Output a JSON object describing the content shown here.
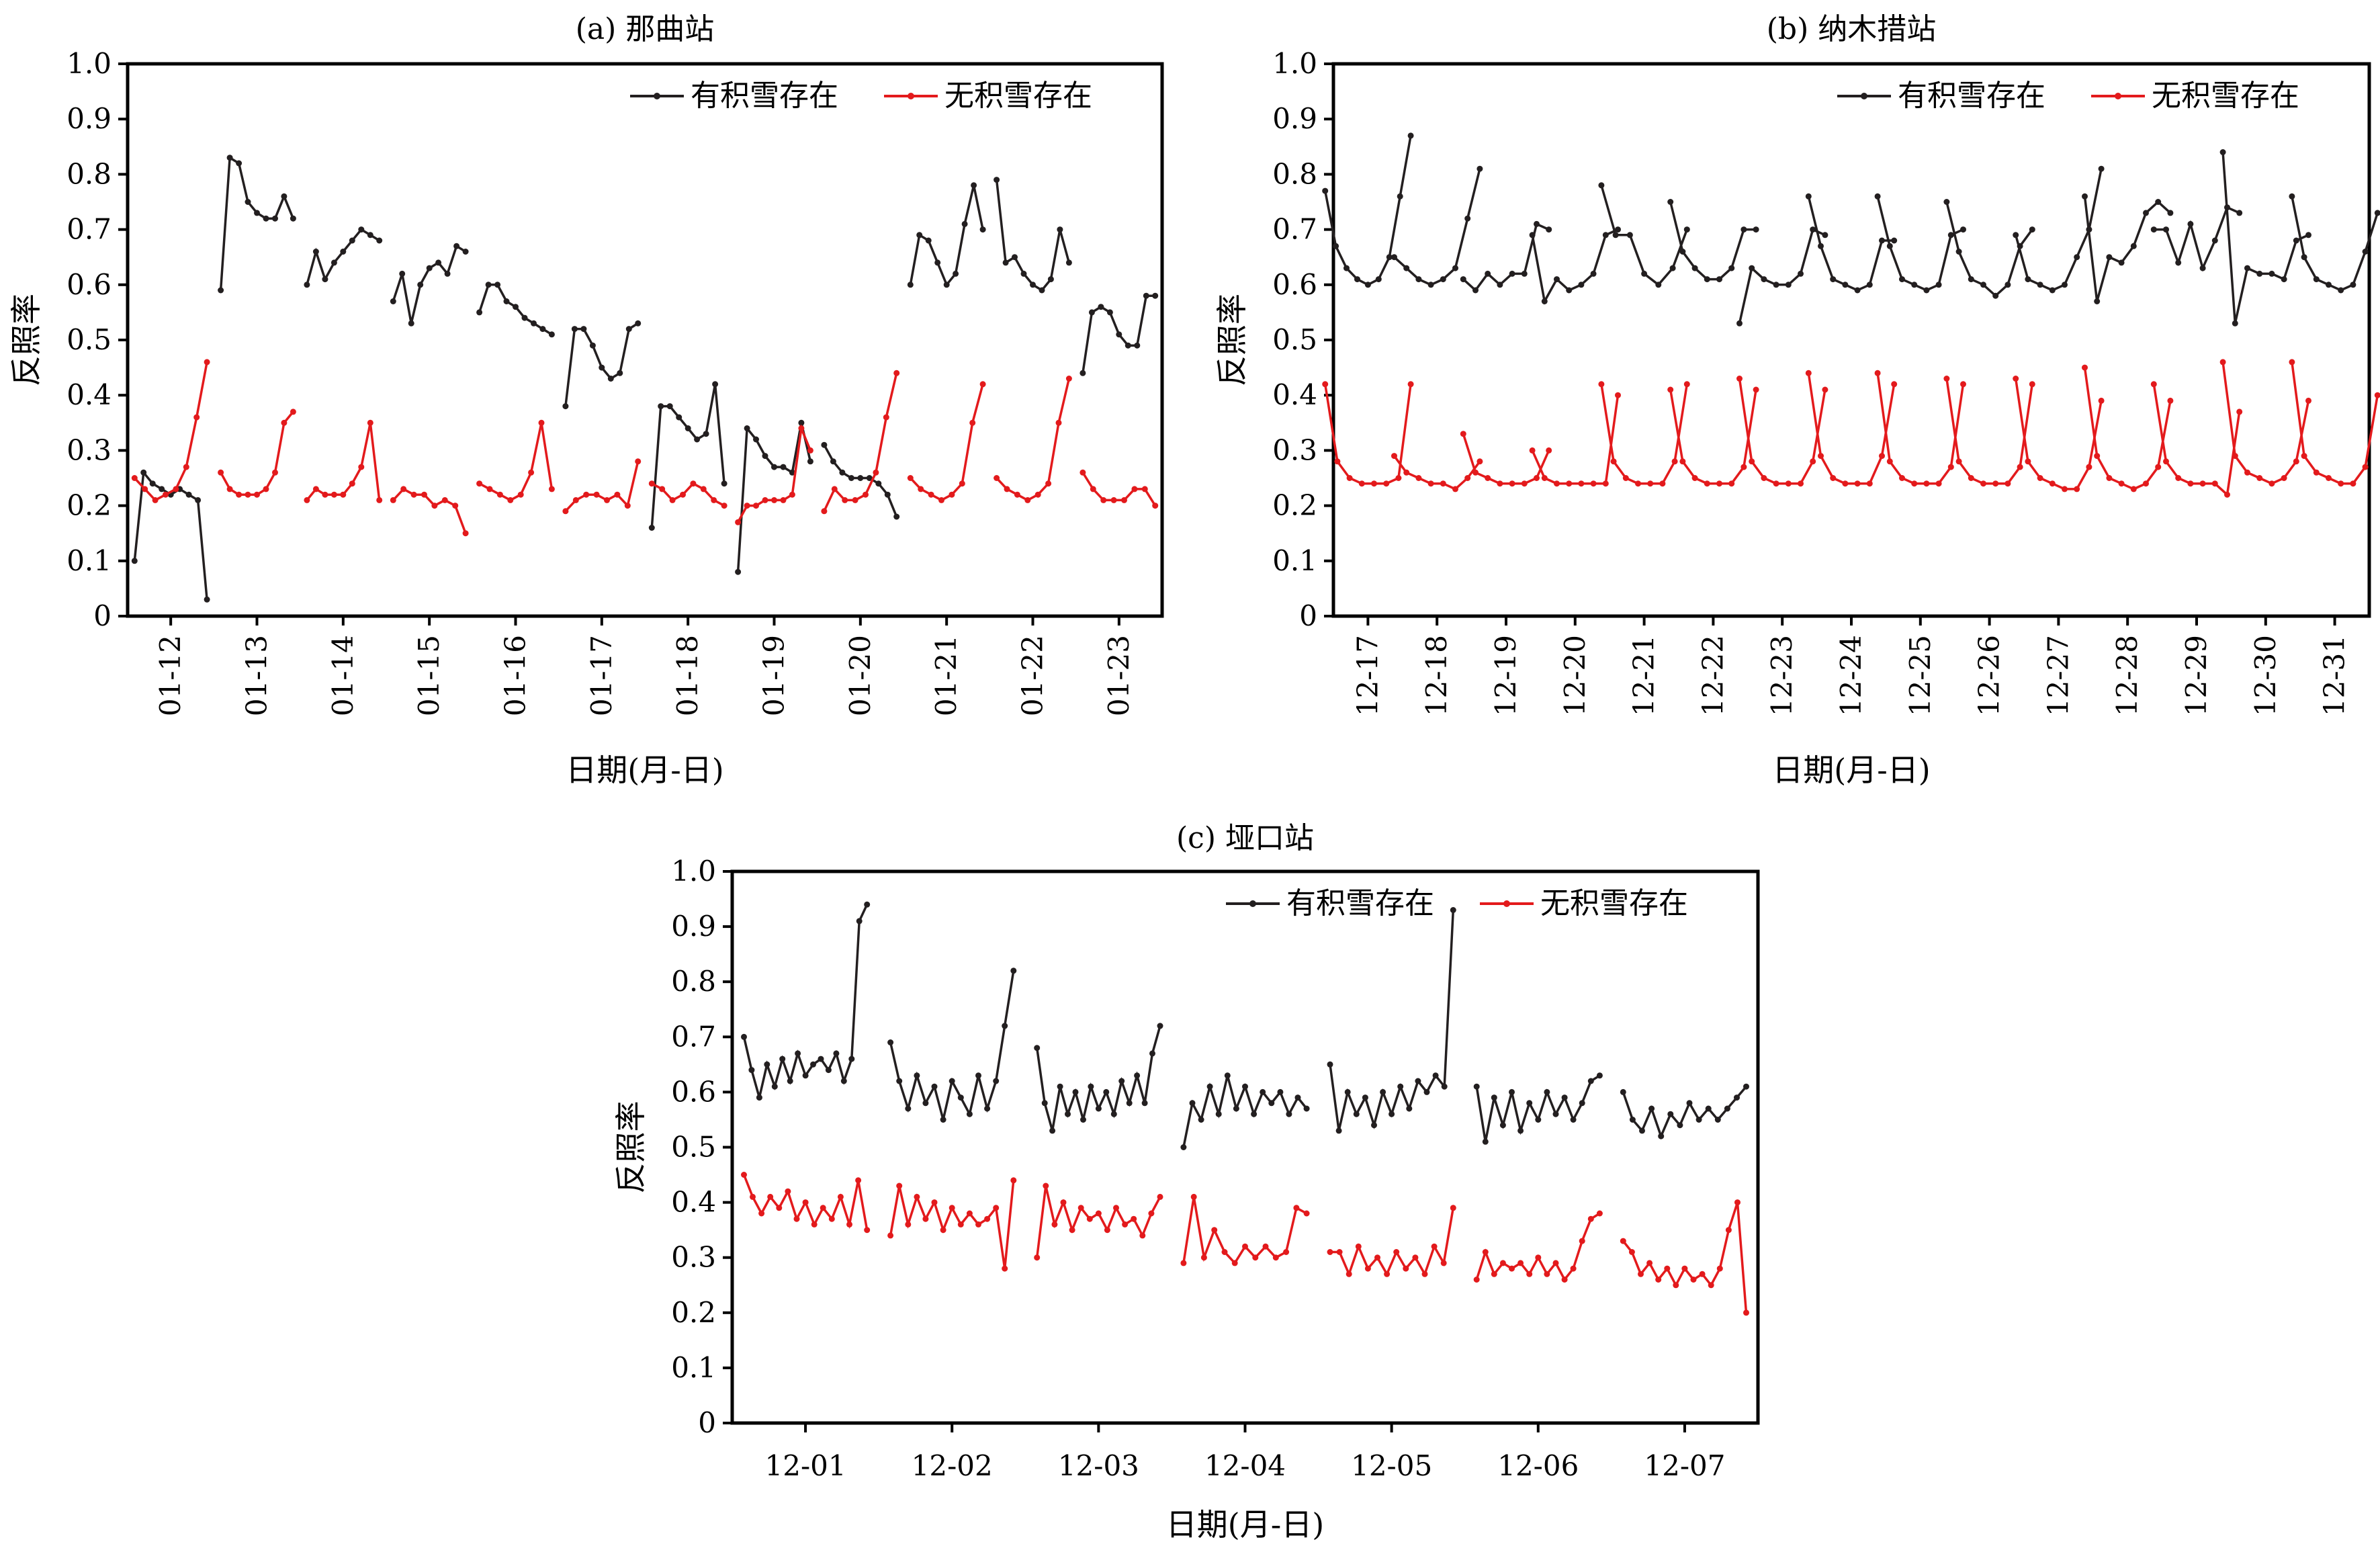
{
  "chart_data": [
    {
      "type": "line",
      "title": "(a) 那曲站",
      "xlabel": "日期(月-日)",
      "ylabel": "反照率",
      "ylim": [
        0,
        1.0
      ],
      "yticks": [
        "0",
        "0.1",
        "0.2",
        "0.3",
        "0.4",
        "0.5",
        "0.6",
        "0.7",
        "0.8",
        "0.9",
        "1.0"
      ],
      "categories": [
        "01-12",
        "01-13",
        "01-14",
        "01-15",
        "01-16",
        "01-17",
        "01-18",
        "01-19",
        "01-20",
        "01-21",
        "01-22",
        "01-23"
      ],
      "legend_position": "top-right",
      "series": [
        {
          "name": "有积雪存在",
          "color": "#231f20",
          "days": [
            [
              0.1,
              0.26,
              0.24,
              0.23,
              0.22,
              0.23,
              0.22,
              0.21,
              0.03
            ],
            [
              0.59,
              0.83,
              0.82,
              0.75,
              0.73,
              0.72,
              0.72,
              0.76,
              0.72
            ],
            [
              0.6,
              0.66,
              0.61,
              0.64,
              0.66,
              0.68,
              0.7,
              0.69,
              0.68
            ],
            [
              0.57,
              0.62,
              0.53,
              0.6,
              0.63,
              0.64,
              0.62,
              0.67,
              0.66
            ],
            [
              0.55,
              0.6,
              0.6,
              0.57,
              0.56,
              0.54,
              0.53,
              0.52,
              0.51
            ],
            [
              0.38,
              0.52,
              0.52,
              0.49,
              0.45,
              0.43,
              0.44,
              0.52,
              0.53
            ],
            [
              0.16,
              0.38,
              0.38,
              0.36,
              0.34,
              0.32,
              0.33,
              0.42,
              0.24
            ],
            [
              0.08,
              0.34,
              0.32,
              0.29,
              0.27,
              0.27,
              0.26,
              0.35,
              0.28
            ],
            [
              0.31,
              0.28,
              0.26,
              0.25,
              0.25,
              0.25,
              0.24,
              0.22,
              0.18
            ],
            [
              0.6,
              0.69,
              0.68,
              0.64,
              0.6,
              0.62,
              0.71,
              0.78,
              0.7
            ],
            [
              0.79,
              0.64,
              0.65,
              0.62,
              0.6,
              0.59,
              0.61,
              0.7,
              0.64
            ],
            [
              0.44,
              0.55,
              0.56,
              0.55,
              0.51,
              0.49,
              0.49,
              0.58,
              0.58
            ]
          ]
        },
        {
          "name": "无积雪存在",
          "color": "#e31a1c",
          "days": [
            [
              0.25,
              0.23,
              0.21,
              0.22,
              0.23,
              0.27,
              0.36,
              0.46
            ],
            [
              0.26,
              0.23,
              0.22,
              0.22,
              0.22,
              0.23,
              0.26,
              0.35,
              0.37
            ],
            [
              0.21,
              0.23,
              0.22,
              0.22,
              0.22,
              0.24,
              0.27,
              0.35,
              0.21
            ],
            [
              0.21,
              0.23,
              0.22,
              0.22,
              0.2,
              0.21,
              0.2,
              0.15
            ],
            [
              0.24,
              0.23,
              0.22,
              0.21,
              0.22,
              0.26,
              0.35,
              0.23
            ],
            [
              0.19,
              0.21,
              0.22,
              0.22,
              0.21,
              0.22,
              0.2,
              0.28
            ],
            [
              0.24,
              0.23,
              0.21,
              0.22,
              0.24,
              0.23,
              0.21,
              0.2
            ],
            [
              0.17,
              0.2,
              0.2,
              0.21,
              0.21,
              0.21,
              0.22,
              0.34,
              0.3
            ],
            [
              0.19,
              0.23,
              0.21,
              0.21,
              0.22,
              0.26,
              0.36,
              0.44
            ],
            [
              0.25,
              0.23,
              0.22,
              0.21,
              0.22,
              0.24,
              0.35,
              0.42
            ],
            [
              0.25,
              0.23,
              0.22,
              0.21,
              0.22,
              0.24,
              0.35,
              0.43
            ],
            [
              0.26,
              0.23,
              0.21,
              0.21,
              0.21,
              0.23,
              0.23,
              0.2
            ]
          ]
        }
      ]
    },
    {
      "type": "line",
      "title": "(b) 纳木措站",
      "xlabel": "日期(月-日)",
      "ylabel": "反照率",
      "ylim": [
        0,
        1.0
      ],
      "yticks": [
        "0",
        "0.1",
        "0.2",
        "0.3",
        "0.4",
        "0.5",
        "0.6",
        "0.7",
        "0.8",
        "0.9",
        "1.0"
      ],
      "categories": [
        "12-17",
        "12-18",
        "12-19",
        "12-20",
        "12-21",
        "12-22",
        "12-23",
        "12-24",
        "12-25",
        "12-26",
        "12-27",
        "12-28",
        "12-29",
        "12-30",
        "12-31"
      ],
      "legend_position": "top-right",
      "series": [
        {
          "name": "有积雪存在",
          "color": "#231f20",
          "days": [
            [
              0.77,
              0.67,
              0.63,
              0.61,
              0.6,
              0.61,
              0.65,
              0.76,
              0.87
            ],
            [
              0.65,
              0.63,
              0.61,
              0.6,
              0.61,
              0.63,
              0.72,
              0.81
            ],
            [
              0.61,
              0.59,
              0.62,
              0.6,
              0.62,
              0.62,
              0.71,
              0.7
            ],
            [
              0.69,
              0.57,
              0.61,
              0.59,
              0.6,
              0.62,
              0.69,
              0.7
            ],
            [
              0.78,
              0.69,
              0.69,
              0.62,
              0.6,
              0.63,
              0.7
            ],
            [
              0.75,
              0.66,
              0.63,
              0.61,
              0.61,
              0.63,
              0.7,
              0.7
            ],
            [
              0.53,
              0.63,
              0.61,
              0.6,
              0.6,
              0.62,
              0.7,
              0.69
            ],
            [
              0.76,
              0.67,
              0.61,
              0.6,
              0.59,
              0.6,
              0.68,
              0.68
            ],
            [
              0.76,
              0.67,
              0.61,
              0.6,
              0.59,
              0.6,
              0.69,
              0.7
            ],
            [
              0.75,
              0.66,
              0.61,
              0.6,
              0.58,
              0.6,
              0.67,
              0.7
            ],
            [
              0.69,
              0.61,
              0.6,
              0.59,
              0.6,
              0.65,
              0.7,
              0.81
            ],
            [
              0.76,
              0.57,
              0.65,
              0.64,
              0.67,
              0.73,
              0.75,
              0.73
            ],
            [
              0.7,
              0.7,
              0.64,
              0.71,
              0.63,
              0.68,
              0.74,
              0.73
            ],
            [
              0.84,
              0.53,
              0.63,
              0.62,
              0.62,
              0.61,
              0.68,
              0.69
            ],
            [
              0.76,
              0.65,
              0.61,
              0.6,
              0.59,
              0.6,
              0.66,
              0.73
            ]
          ]
        },
        {
          "name": "无积雪存在",
          "color": "#e31a1c",
          "days": [
            [
              0.42,
              0.28,
              0.25,
              0.24,
              0.24,
              0.24,
              0.25,
              0.42
            ],
            [
              0.29,
              0.26,
              0.25,
              0.24,
              0.24,
              0.23,
              0.25,
              0.28
            ],
            [
              0.33,
              0.26,
              0.25,
              0.24,
              0.24,
              0.24,
              0.25,
              0.3
            ],
            [
              0.3,
              0.25,
              0.24,
              0.24,
              0.24,
              0.24,
              0.24,
              0.4
            ],
            [
              0.42,
              0.28,
              0.25,
              0.24,
              0.24,
              0.24,
              0.28,
              0.42
            ],
            [
              0.41,
              0.28,
              0.25,
              0.24,
              0.24,
              0.24,
              0.27,
              0.41
            ],
            [
              0.43,
              0.28,
              0.25,
              0.24,
              0.24,
              0.24,
              0.28,
              0.41
            ],
            [
              0.44,
              0.29,
              0.25,
              0.24,
              0.24,
              0.24,
              0.29,
              0.42
            ],
            [
              0.44,
              0.28,
              0.25,
              0.24,
              0.24,
              0.24,
              0.27,
              0.42
            ],
            [
              0.43,
              0.28,
              0.25,
              0.24,
              0.24,
              0.24,
              0.27,
              0.42
            ],
            [
              0.43,
              0.28,
              0.25,
              0.24,
              0.23,
              0.23,
              0.27,
              0.39
            ],
            [
              0.45,
              0.29,
              0.25,
              0.24,
              0.23,
              0.24,
              0.27,
              0.39
            ],
            [
              0.42,
              0.28,
              0.25,
              0.24,
              0.24,
              0.24,
              0.22,
              0.37
            ],
            [
              0.46,
              0.29,
              0.26,
              0.25,
              0.24,
              0.25,
              0.28,
              0.39
            ],
            [
              0.46,
              0.29,
              0.26,
              0.25,
              0.24,
              0.24,
              0.27,
              0.4
            ]
          ]
        }
      ]
    },
    {
      "type": "line",
      "title": "(c) 垭口站",
      "xlabel": "日期(月-日)",
      "ylabel": "反照率",
      "ylim": [
        0,
        1.0
      ],
      "yticks": [
        "0",
        "0.1",
        "0.2",
        "0.3",
        "0.4",
        "0.5",
        "0.6",
        "0.7",
        "0.8",
        "0.9",
        "1.0"
      ],
      "categories": [
        "12-01",
        "12-02",
        "12-03",
        "12-04",
        "12-05",
        "12-06",
        "12-07"
      ],
      "legend_position": "top-right",
      "series": [
        {
          "name": "有积雪存在",
          "color": "#231f20",
          "days": [
            [
              0.7,
              0.64,
              0.59,
              0.65,
              0.61,
              0.66,
              0.62,
              0.67,
              0.63,
              0.65,
              0.66,
              0.64,
              0.67,
              0.62,
              0.66,
              0.91,
              0.94
            ],
            [
              0.69,
              0.62,
              0.57,
              0.63,
              0.58,
              0.61,
              0.55,
              0.62,
              0.59,
              0.56,
              0.63,
              0.57,
              0.62,
              0.72,
              0.82
            ],
            [
              0.68,
              0.58,
              0.53,
              0.61,
              0.56,
              0.6,
              0.55,
              0.61,
              0.57,
              0.6,
              0.56,
              0.62,
              0.58,
              0.63,
              0.58,
              0.67,
              0.72
            ],
            [
              0.5,
              0.58,
              0.55,
              0.61,
              0.56,
              0.63,
              0.57,
              0.61,
              0.56,
              0.6,
              0.58,
              0.6,
              0.56,
              0.59,
              0.57
            ],
            [
              0.65,
              0.53,
              0.6,
              0.56,
              0.59,
              0.54,
              0.6,
              0.56,
              0.61,
              0.57,
              0.62,
              0.6,
              0.63,
              0.61,
              0.93
            ],
            [
              0.61,
              0.51,
              0.59,
              0.54,
              0.6,
              0.53,
              0.58,
              0.55,
              0.6,
              0.56,
              0.59,
              0.55,
              0.58,
              0.62,
              0.63
            ],
            [
              0.6,
              0.55,
              0.53,
              0.57,
              0.52,
              0.56,
              0.54,
              0.58,
              0.55,
              0.57,
              0.55,
              0.57,
              0.59,
              0.61
            ]
          ]
        },
        {
          "name": "无积雪存在",
          "color": "#e31a1c",
          "days": [
            [
              0.45,
              0.41,
              0.38,
              0.41,
              0.39,
              0.42,
              0.37,
              0.4,
              0.36,
              0.39,
              0.37,
              0.41,
              0.36,
              0.44,
              0.35
            ],
            [
              0.34,
              0.43,
              0.36,
              0.41,
              0.37,
              0.4,
              0.35,
              0.39,
              0.36,
              0.38,
              0.36,
              0.37,
              0.39,
              0.28,
              0.44
            ],
            [
              0.3,
              0.43,
              0.36,
              0.4,
              0.35,
              0.39,
              0.37,
              0.38,
              0.35,
              0.39,
              0.36,
              0.37,
              0.34,
              0.38,
              0.41
            ],
            [
              0.29,
              0.41,
              0.3,
              0.35,
              0.31,
              0.29,
              0.32,
              0.3,
              0.32,
              0.3,
              0.31,
              0.39,
              0.38
            ],
            [
              0.31,
              0.31,
              0.27,
              0.32,
              0.28,
              0.3,
              0.27,
              0.31,
              0.28,
              0.3,
              0.27,
              0.32,
              0.29,
              0.39
            ],
            [
              0.26,
              0.31,
              0.27,
              0.29,
              0.28,
              0.29,
              0.27,
              0.3,
              0.27,
              0.29,
              0.26,
              0.28,
              0.33,
              0.37,
              0.38
            ],
            [
              0.33,
              0.31,
              0.27,
              0.29,
              0.26,
              0.28,
              0.25,
              0.28,
              0.26,
              0.27,
              0.25,
              0.28,
              0.35,
              0.4,
              0.2
            ]
          ]
        }
      ]
    }
  ]
}
